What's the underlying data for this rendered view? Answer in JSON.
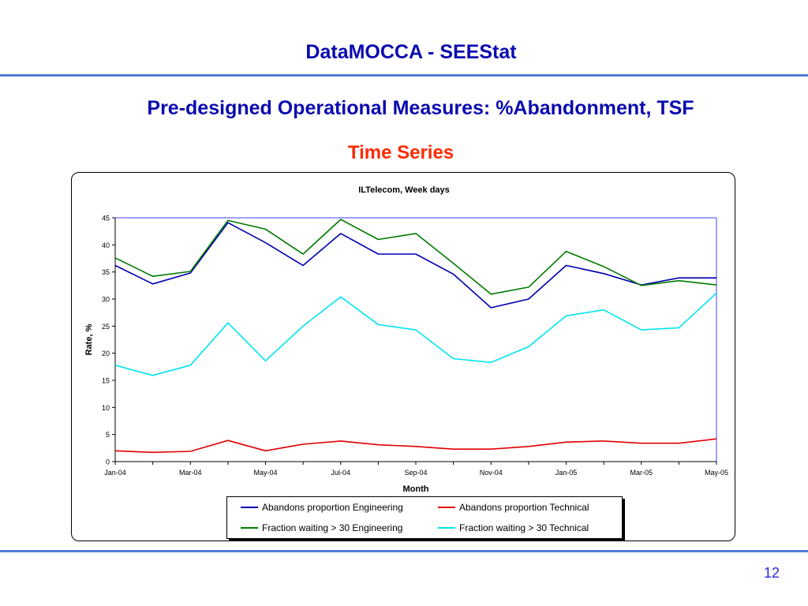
{
  "slide": {
    "title": "DataMOCCA - SEEStat",
    "subtitle": "Pre-designed Operational Measures: %Abandonment, TSF",
    "section": "Time Series",
    "page_number": "12"
  },
  "colors": {
    "title": "#0a0ab0",
    "section": "#ff2a00",
    "rule": "#4f7dd6",
    "plot_border": "#4040ff"
  },
  "chart_data": {
    "type": "line",
    "title": "ILTelecom, Week days",
    "xlabel": "Month",
    "ylabel": "Rate, %",
    "ylim": [
      0,
      45
    ],
    "yticks": [
      0,
      5,
      10,
      15,
      20,
      25,
      30,
      35,
      40,
      45
    ],
    "x": [
      "Jan-04",
      "Feb-04",
      "Mar-04",
      "Apr-04",
      "May-04",
      "Jun-04",
      "Jul-04",
      "Aug-04",
      "Sep-04",
      "Oct-04",
      "Nov-04",
      "Dec-04",
      "Jan-05",
      "Feb-05",
      "Mar-05",
      "Apr-05",
      "May-05"
    ],
    "xticks": [
      "Jan-04",
      "Mar-04",
      "May-04",
      "Jul-04",
      "Sep-04",
      "Nov-04",
      "Jan-05",
      "Mar-05",
      "May-05"
    ],
    "grid": false,
    "legend_position": "bottom",
    "series": [
      {
        "name": "Abandons proportion Engineering",
        "color": "#0000b0",
        "values": [
          36.2,
          32.8,
          34.8,
          44.1,
          40.4,
          36.2,
          42.1,
          38.3,
          38.3,
          34.6,
          28.4,
          30.0,
          36.2,
          34.7,
          32.6,
          33.9,
          33.9
        ]
      },
      {
        "name": "Abandons proportion Technical",
        "color": "#e00000",
        "values": [
          2.0,
          1.7,
          1.9,
          3.9,
          2.0,
          3.2,
          3.8,
          3.1,
          2.8,
          2.3,
          2.3,
          2.8,
          3.6,
          3.8,
          3.4,
          3.4,
          4.2
        ]
      },
      {
        "name": "Fraction waiting > 30 Engineering",
        "color": "#007a00",
        "values": [
          37.6,
          34.2,
          35.1,
          44.5,
          42.9,
          38.3,
          44.7,
          41.0,
          42.1,
          36.6,
          30.9,
          32.2,
          38.8,
          36.0,
          32.5,
          33.4,
          32.6
        ]
      },
      {
        "name": "Fraction waiting > 30 Technical",
        "color": "#00e5ee",
        "values": [
          17.8,
          15.9,
          17.8,
          25.6,
          18.6,
          25.0,
          30.4,
          25.3,
          24.3,
          19.0,
          18.3,
          21.2,
          26.9,
          28.0,
          24.3,
          24.7,
          31.1
        ]
      }
    ]
  }
}
